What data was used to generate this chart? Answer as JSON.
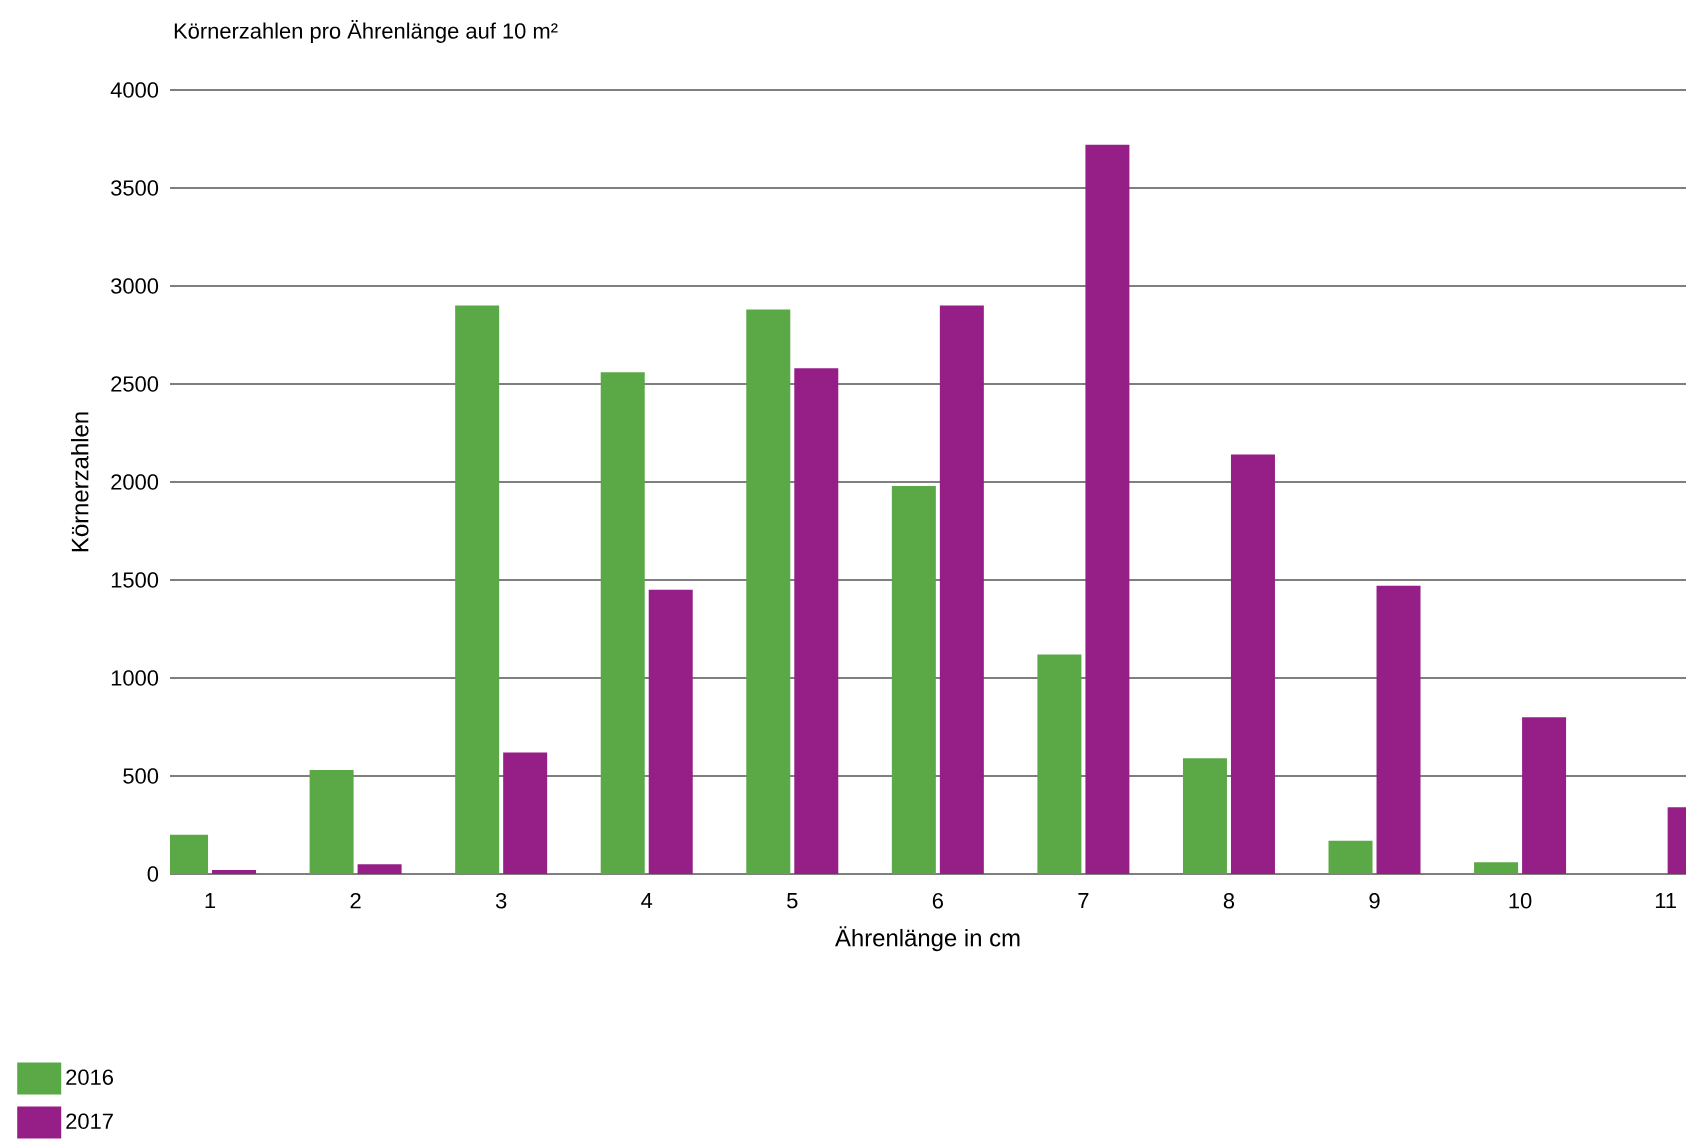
{
  "chart_data": {
    "type": "bar",
    "title": "Körnerzahlen pro Ährenlänge auf 10 m²",
    "xlabel": "Ährenlänge in cm",
    "ylabel": "Körnerzahlen",
    "categories": [
      "1",
      "2",
      "3",
      "4",
      "5",
      "6",
      "7",
      "8",
      "9",
      "10",
      "11"
    ],
    "series": [
      {
        "name": "2016",
        "color": "#5aa846",
        "values": [
          200,
          530,
          2900,
          2560,
          2880,
          1980,
          1120,
          590,
          170,
          60,
          null
        ]
      },
      {
        "name": "2017",
        "color": "#951f87",
        "values": [
          20,
          50,
          620,
          1450,
          2580,
          2900,
          3720,
          2140,
          1470,
          800,
          340
        ]
      }
    ],
    "ylim": [
      0,
      4000
    ],
    "yticks": [
      0,
      500,
      1000,
      1500,
      2000,
      2500,
      3000,
      3500,
      4000
    ],
    "grid": "y",
    "legend": "bottom left"
  }
}
